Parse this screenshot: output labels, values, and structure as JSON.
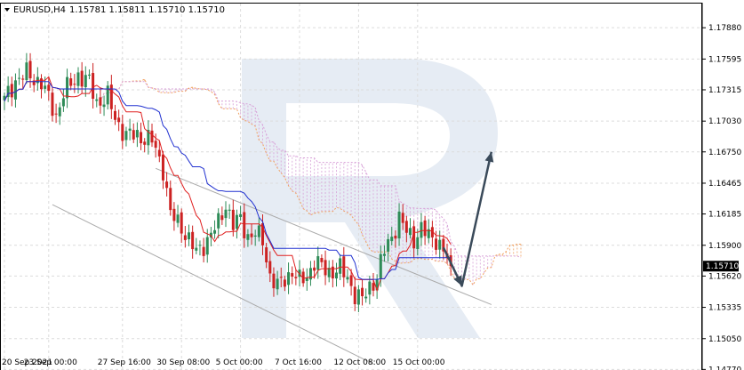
{
  "chart_data": {
    "type": "candlestick",
    "title": "EURUSD,H4",
    "ohlc_label": "1.15781 1.15811 1.15710 1.15710",
    "last_price": "1.15710",
    "y_ticks": [
      "1.17880",
      "1.17595",
      "1.17315",
      "1.17030",
      "1.16750",
      "1.16465",
      "1.16185",
      "1.15900",
      "1.15620",
      "1.15335",
      "1.15050",
      "1.14770"
    ],
    "y_tick_values": [
      1.1788,
      1.17595,
      1.17315,
      1.1703,
      1.1675,
      1.16465,
      1.16185,
      1.159,
      1.1562,
      1.15335,
      1.1505,
      1.1477
    ],
    "ylim": [
      1.147,
      1.181
    ],
    "x_ticks": [
      "20 Sep 2021",
      "23 Sep 00:00",
      "27 Sep 16:00",
      "30 Sep 08:00",
      "5 Oct 00:00",
      "7 Oct 16:00",
      "12 Oct 08:00",
      "15 Oct 00:00"
    ],
    "x_tick_index": [
      0,
      12,
      32,
      48,
      64,
      80,
      96,
      112
    ],
    "bar_count": 122,
    "anchors": [
      [
        0,
        1.1722
      ],
      [
        3,
        1.174
      ],
      [
        6,
        1.1746
      ],
      [
        10,
        1.1738
      ],
      [
        14,
        1.1708
      ],
      [
        16,
        1.1728
      ],
      [
        20,
        1.1745
      ],
      [
        23,
        1.1738
      ],
      [
        25,
        1.172
      ],
      [
        28,
        1.1725
      ],
      [
        30,
        1.1705
      ],
      [
        33,
        1.169
      ],
      [
        36,
        1.169
      ],
      [
        40,
        1.1685
      ],
      [
        43,
        1.166
      ],
      [
        45,
        1.1618
      ],
      [
        48,
        1.1607
      ],
      [
        52,
        1.1583
      ],
      [
        55,
        1.1595
      ],
      [
        58,
        1.161
      ],
      [
        60,
        1.1628
      ],
      [
        62,
        1.1608
      ],
      [
        64,
        1.1614
      ],
      [
        66,
        1.1598
      ],
      [
        68,
        1.16
      ],
      [
        70,
        1.1595
      ],
      [
        72,
        1.1562
      ],
      [
        74,
        1.1552
      ],
      [
        76,
        1.156
      ],
      [
        78,
        1.1566
      ],
      [
        80,
        1.1557
      ],
      [
        82,
        1.1562
      ],
      [
        84,
        1.1575
      ],
      [
        86,
        1.157
      ],
      [
        88,
        1.1566
      ],
      [
        91,
        1.1568
      ],
      [
        93,
        1.156
      ],
      [
        95,
        1.1546
      ],
      [
        97,
        1.154
      ],
      [
        99,
        1.1552
      ],
      [
        101,
        1.1562
      ],
      [
        103,
        1.1585
      ],
      [
        105,
        1.1598
      ],
      [
        107,
        1.1615
      ],
      [
        109,
        1.1602
      ],
      [
        111,
        1.1596
      ],
      [
        113,
        1.1605
      ],
      [
        115,
        1.1598
      ],
      [
        117,
        1.1596
      ],
      [
        119,
        1.1585
      ],
      [
        121,
        1.1571
      ]
    ],
    "colors": {
      "bull": "#2e8b57",
      "bear": "#cc2222",
      "tenkan": "#e02020",
      "kijun": "#2030d0",
      "cloud_up": "#f0a060",
      "cloud_down": "#d8a0d8",
      "channel": "#aaaaaa",
      "arrow": "#3a4a5a",
      "watermark": "#e6ecf4",
      "price_tag": "#000000"
    }
  }
}
